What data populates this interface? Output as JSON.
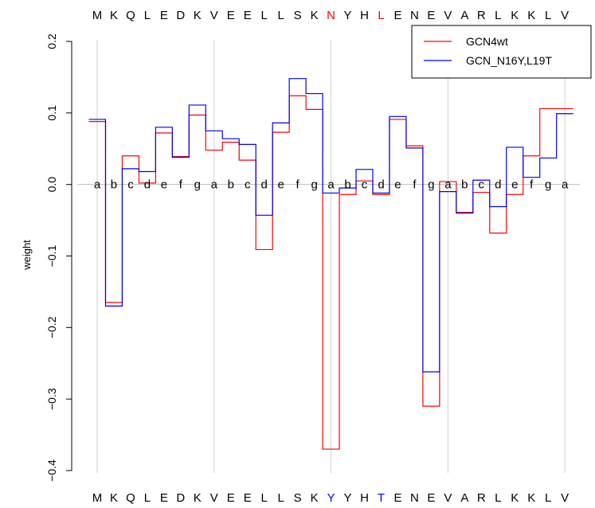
{
  "chart_data": {
    "type": "line",
    "step": true,
    "ylabel": "weight",
    "ylim": [
      -0.4,
      0.2
    ],
    "yticks": [
      -0.4,
      -0.3,
      -0.2,
      -0.1,
      0.0,
      0.1,
      0.2
    ],
    "ytick_labels": [
      "−0.4",
      "−0.3",
      "−0.2",
      "−0.1",
      "0.0",
      "0.1",
      "0.2"
    ],
    "sequence_top": [
      "M",
      "K",
      "Q",
      "L",
      "E",
      "D",
      "K",
      "V",
      "E",
      "E",
      "L",
      "L",
      "S",
      "K",
      "N",
      "Y",
      "H",
      "L",
      "E",
      "N",
      "E",
      "V",
      "A",
      "R",
      "L",
      "K",
      "K",
      "L",
      "V"
    ],
    "sequence_top_highlight": {
      "14": "#ff0000",
      "17": "#ff0000"
    },
    "sequence_bottom": [
      "M",
      "K",
      "Q",
      "L",
      "E",
      "D",
      "K",
      "V",
      "E",
      "E",
      "L",
      "L",
      "S",
      "K",
      "Y",
      "Y",
      "H",
      "T",
      "E",
      "N",
      "E",
      "V",
      "A",
      "R",
      "L",
      "K",
      "K",
      "L",
      "V"
    ],
    "sequence_bottom_highlight": {
      "14": "#0000ff",
      "17": "#0000ff"
    },
    "heptad": [
      "a",
      "b",
      "c",
      "d",
      "e",
      "f",
      "g",
      "a",
      "b",
      "c",
      "d",
      "e",
      "f",
      "g",
      "a",
      "b",
      "c",
      "d",
      "e",
      "f",
      "g",
      "a",
      "b",
      "c",
      "d",
      "e",
      "f",
      "g",
      "a"
    ],
    "vertical_gridlines_at": [
      0,
      7,
      14,
      21,
      28
    ],
    "grid": "vertical",
    "legend_position": "top-right",
    "series": [
      {
        "name": "GCN4wt",
        "color": "#ff0000",
        "values": [
          0.088,
          -0.165,
          0.04,
          0.002,
          0.072,
          0.039,
          0.097,
          0.048,
          0.059,
          0.034,
          -0.091,
          0.073,
          0.124,
          0.105,
          -0.37,
          -0.014,
          0.005,
          -0.014,
          0.091,
          0.054,
          -0.31,
          0.004,
          -0.039,
          -0.011,
          -0.068,
          -0.014,
          0.04,
          0.106,
          0.106
        ]
      },
      {
        "name": "GCN_N16Y,L19T",
        "color": "#0000ff",
        "values": [
          0.091,
          -0.17,
          0.022,
          0.018,
          0.08,
          0.038,
          0.111,
          0.075,
          0.064,
          0.056,
          -0.043,
          0.086,
          0.148,
          0.127,
          -0.012,
          -0.005,
          0.021,
          -0.012,
          0.095,
          0.051,
          -0.262,
          -0.01,
          -0.04,
          0.006,
          -0.031,
          0.052,
          0.01,
          0.037,
          0.099
        ]
      }
    ]
  }
}
